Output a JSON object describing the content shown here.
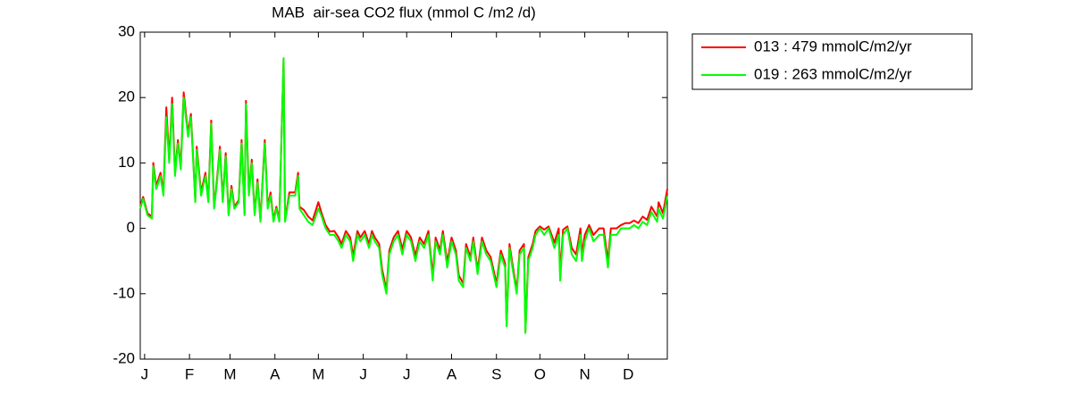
{
  "chart_data": {
    "type": "line",
    "title": "MAB  air-sea CO2 flux (mmol C /m2 /d)",
    "x": [
      -2,
      0,
      3,
      6,
      7,
      9,
      12,
      14,
      16,
      18,
      20,
      22,
      24,
      26,
      28,
      31,
      33,
      36,
      37,
      40,
      43,
      45,
      47,
      49,
      51,
      53,
      55,
      57,
      59,
      61,
      63,
      66,
      68,
      70,
      71,
      73,
      75,
      77,
      79,
      81,
      84,
      86,
      88,
      90,
      92,
      94,
      97,
      98,
      101,
      105,
      107,
      108,
      111,
      114,
      117,
      121,
      123,
      126,
      129,
      132,
      135,
      137,
      140,
      143,
      145,
      148,
      150,
      153,
      156,
      158,
      160,
      163,
      165,
      168,
      170,
      173,
      176,
      179,
      182,
      185,
      188,
      191,
      194,
      197,
      200,
      202,
      205,
      207,
      210,
      213,
      216,
      218,
      221,
      223,
      226,
      228,
      231,
      234,
      237,
      240,
      244,
      247,
      250,
      251,
      253,
      255,
      258,
      260,
      263,
      264,
      266,
      269,
      271,
      274,
      277,
      280,
      284,
      287,
      288,
      290,
      293,
      296,
      299,
      302,
      303,
      305,
      308,
      311,
      315,
      318,
      321,
      323,
      327,
      330,
      333,
      336,
      339,
      342,
      345,
      348,
      351,
      355,
      356,
      359,
      362
    ],
    "series": [
      {
        "name": "013 : 479 mmolC/m2/yr",
        "color": "#ff0000",
        "values": [
          3.3,
          4.8,
          2.3,
          1.8,
          10,
          6.5,
          8.5,
          5.5,
          18.5,
          10.5,
          20,
          8.5,
          13.5,
          9.5,
          20.8,
          14.5,
          17.5,
          4.3,
          12.5,
          5.5,
          8.5,
          4.3,
          16.5,
          3.3,
          7.5,
          12.5,
          4.3,
          11.5,
          2.3,
          6.5,
          3.3,
          4.3,
          13.5,
          2.3,
          19.5,
          5.5,
          10.5,
          2.3,
          7.5,
          1.3,
          13.5,
          3.3,
          5.5,
          1.3,
          3.3,
          1.3,
          26,
          1.3,
          5.5,
          5.5,
          8.5,
          3.3,
          2.8,
          1.8,
          1.2,
          4,
          2.5,
          0.5,
          -0.5,
          -0.4,
          -1.4,
          -2.4,
          -0.4,
          -1.4,
          -4.2,
          -0.4,
          -1.4,
          -0.4,
          -2.4,
          -0.4,
          -1.4,
          -2.4,
          -6.2,
          -9.5,
          -3.4,
          -1.4,
          -0.4,
          -3.2,
          -0.4,
          -1.4,
          -4.2,
          -1.4,
          -2.4,
          -0.4,
          -7.2,
          -1.4,
          -3.4,
          -0.4,
          -5.2,
          -1.4,
          -3.4,
          -7.2,
          -8.4,
          -2.4,
          -4.4,
          -1.4,
          -6.4,
          -1.4,
          -3.4,
          -4.4,
          -8.4,
          -3.4,
          -5.4,
          -14.8,
          -2.4,
          -5.4,
          -9.5,
          -3.4,
          -2.4,
          -15.8,
          -4.4,
          -2.4,
          -0.4,
          0.3,
          -0.2,
          0.3,
          -2.2,
          0,
          -7,
          -0.2,
          0.3,
          -3,
          -4,
          0,
          -4,
          -1,
          0.5,
          -1,
          0,
          0,
          -5,
          0,
          0,
          0.5,
          0.8,
          0.8,
          1.2,
          0.8,
          1.8,
          1.3,
          3.3,
          1.8,
          4,
          2.3,
          6
        ]
      },
      {
        "name": "019 : 263 mmolC/m2/yr",
        "color": "#00ff00",
        "values": [
          3,
          4.5,
          2,
          1.5,
          9.5,
          6,
          8,
          5,
          17,
          10,
          19,
          8,
          13,
          9,
          20,
          14,
          17,
          4,
          12,
          5,
          8,
          4,
          16,
          3,
          7,
          12,
          4,
          11,
          2,
          6,
          3,
          4,
          13,
          2,
          19,
          5,
          10,
          2,
          7,
          1,
          13,
          3,
          5,
          1,
          3,
          1,
          26,
          1,
          5,
          5,
          8,
          3,
          2,
          1,
          0.5,
          3,
          2,
          0,
          -1,
          -1,
          -2,
          -3,
          -1,
          -2,
          -5,
          -1,
          -2,
          -1,
          -3,
          -1,
          -2,
          -3,
          -7,
          -10,
          -4,
          -2,
          -1,
          -4,
          -1,
          -2,
          -5,
          -2,
          -3,
          -1,
          -8,
          -2,
          -4,
          -1,
          -6,
          -2,
          -4,
          -8,
          -9,
          -3,
          -5,
          -2,
          -7,
          -2,
          -4,
          -5,
          -9,
          -4,
          -6,
          -15,
          -3,
          -6,
          -10,
          -4,
          -3,
          -16,
          -5,
          -3,
          -1,
          0,
          -1,
          0,
          -3,
          -1,
          -8,
          -1,
          0,
          -4,
          -5,
          -1,
          -5,
          -2,
          0,
          -2,
          -1,
          -1,
          -6,
          -1,
          -1,
          0,
          0,
          0,
          0.5,
          0,
          1,
          0.5,
          2.5,
          1,
          3,
          1.5,
          5
        ]
      }
    ],
    "xlim": [
      -2,
      362
    ],
    "xticks": [
      {
        "value": 1,
        "label": "J"
      },
      {
        "value": 32,
        "label": "F"
      },
      {
        "value": 60,
        "label": "M"
      },
      {
        "value": 91,
        "label": "A"
      },
      {
        "value": 121,
        "label": "M"
      },
      {
        "value": 152,
        "label": "J"
      },
      {
        "value": 182,
        "label": "J"
      },
      {
        "value": 213,
        "label": "A"
      },
      {
        "value": 244,
        "label": "S"
      },
      {
        "value": 274,
        "label": "O"
      },
      {
        "value": 305,
        "label": "N"
      },
      {
        "value": 335,
        "label": "D"
      }
    ],
    "ylim": [
      -20,
      30
    ],
    "yticks": [
      -20,
      -10,
      0,
      10,
      20,
      30
    ],
    "grid": false,
    "legend": "outside-right"
  }
}
